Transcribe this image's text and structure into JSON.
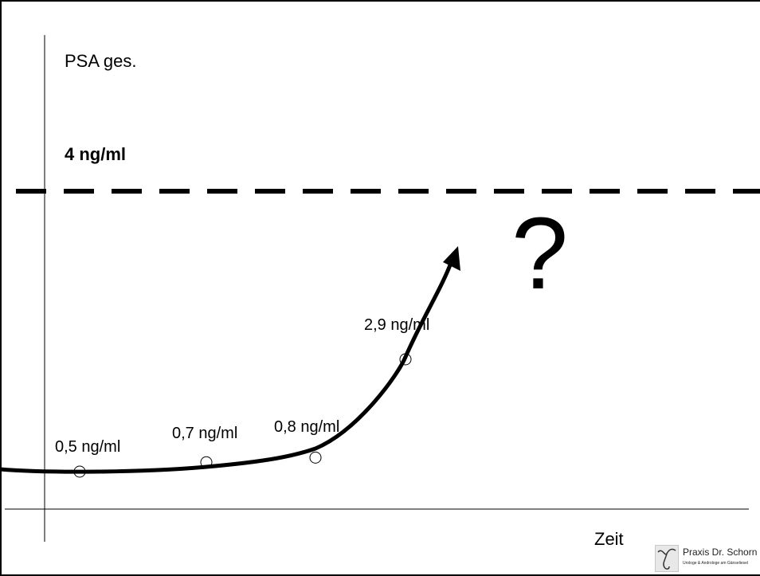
{
  "chart_data": {
    "type": "line",
    "ylabel": "PSA ges.",
    "xlabel": "Zeit",
    "threshold": {
      "value": 4,
      "label": "4 ng/ml",
      "style": "dashed"
    },
    "annotation": "?",
    "x": [
      1,
      2,
      3,
      4
    ],
    "values": [
      0.5,
      0.7,
      0.8,
      2.9
    ],
    "point_labels": [
      "0,5 ng/ml",
      "0,7 ng/ml",
      "0,8 ng/ml",
      "2,9 ng/ml"
    ],
    "trend": "exponential rise with arrowhead pointing toward the threshold"
  },
  "logo": {
    "brand": "Praxis Dr. Schorn",
    "subtitle": "Urologe & Androloge am Gänseliesel"
  },
  "colors": {
    "line": "#000000",
    "background": "#ffffff"
  }
}
